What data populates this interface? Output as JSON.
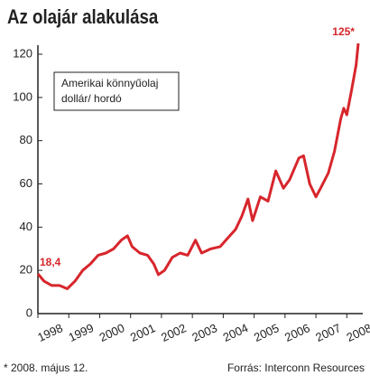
{
  "chart_data": {
    "type": "line",
    "title": "Az olajár alakulása",
    "box_text": [
      "Amerikai könnyűolaj",
      "dollár/ hordó"
    ],
    "footnote": "* 2008. május 12.",
    "source": "Forrás: Interconn Resources",
    "x": [
      1998.0,
      1998.2,
      1998.45,
      1998.7,
      1998.95,
      1999.2,
      1999.45,
      1999.7,
      1999.95,
      2000.2,
      2000.45,
      2000.7,
      2000.9,
      2001.05,
      2001.3,
      2001.55,
      2001.75,
      2001.9,
      2002.1,
      2002.35,
      2002.6,
      2002.85,
      2003.1,
      2003.3,
      2003.6,
      2003.9,
      2004.15,
      2004.4,
      2004.6,
      2004.8,
      2004.95,
      2005.2,
      2005.45,
      2005.7,
      2005.95,
      2006.15,
      2006.45,
      2006.6,
      2006.8,
      2007.0,
      2007.15,
      2007.4,
      2007.6,
      2007.8,
      2007.9,
      2008.0,
      2008.15,
      2008.3,
      2008.37
    ],
    "series": [
      {
        "color": "#d7262c",
        "values": [
          18.4,
          15,
          13,
          13,
          11.5,
          15,
          20,
          23,
          27,
          28,
          30,
          34,
          36,
          31,
          28,
          27,
          23,
          18,
          20,
          26,
          28,
          27,
          34,
          28,
          30,
          31,
          35,
          39,
          45,
          53,
          43,
          54,
          52,
          66,
          58,
          62,
          72,
          73,
          60,
          54,
          58,
          65,
          75,
          90,
          95,
          92,
          103,
          115,
          125
        ],
        "value_labels": [
          "18,4",
          null,
          null,
          null,
          null,
          null,
          null,
          null,
          null,
          null,
          null,
          null,
          null,
          null,
          null,
          null,
          null,
          null,
          null,
          null,
          null,
          null,
          null,
          null,
          null,
          null,
          null,
          null,
          null,
          null,
          null,
          null,
          null,
          null,
          null,
          null,
          null,
          null,
          null,
          null,
          null,
          null,
          null,
          null,
          null,
          null,
          null,
          null,
          "125*"
        ]
      }
    ],
    "xlim": [
      1998,
      2008.4
    ],
    "xticks": [
      1998,
      1999,
      2000,
      2001,
      2002,
      2003,
      2004,
      2005,
      2006,
      2007,
      2008
    ],
    "ylim": [
      0,
      120
    ],
    "yticks": [
      0,
      20,
      40,
      60,
      80,
      100,
      120
    ]
  }
}
